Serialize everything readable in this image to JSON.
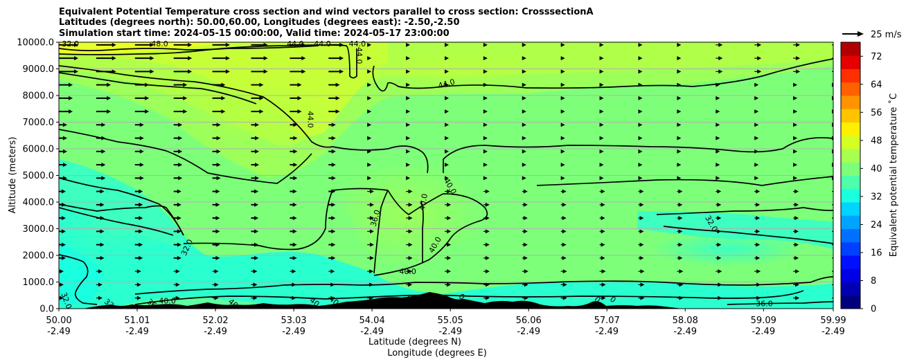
{
  "chart_data": {
    "type": "heatmap",
    "title_lines": [
      "Equivalent Potential Temperature cross section and wind vectors parallel to cross section: CrosssectionA",
      "Latitudes (degrees north): 50.00,60.00, Longitudes (degrees east): -2.50,-2.50",
      "Simulation start time: 2024-05-15 00:00:00, Valid time: 2024-05-17 23:00:00"
    ],
    "ylabel": "Altitude (meters)",
    "xlabel_lines": [
      "Latitude (degrees N)",
      "Longitude (degrees E)"
    ],
    "ylim": [
      0,
      10000
    ],
    "yticks": [
      {
        "value": 0,
        "label": "0.0"
      },
      {
        "value": 1000,
        "label": "1000.0"
      },
      {
        "value": 2000,
        "label": "2000.0"
      },
      {
        "value": 3000,
        "label": "3000.0"
      },
      {
        "value": 4000,
        "label": "4000.0"
      },
      {
        "value": 5000,
        "label": "5000.0"
      },
      {
        "value": 6000,
        "label": "6000.0"
      },
      {
        "value": 7000,
        "label": "7000.0"
      },
      {
        "value": 8000,
        "label": "8000.0"
      },
      {
        "value": 9000,
        "label": "9000.0"
      },
      {
        "value": 10000,
        "label": "10000.0"
      }
    ],
    "xlim": [
      50.0,
      59.99
    ],
    "xticks": [
      {
        "lat": 50.0,
        "lat_label": "50.00",
        "lon_label": "-2.49"
      },
      {
        "lat": 51.01,
        "lat_label": "51.01",
        "lon_label": "-2.49"
      },
      {
        "lat": 52.02,
        "lat_label": "52.02",
        "lon_label": "-2.49"
      },
      {
        "lat": 53.03,
        "lat_label": "53.03",
        "lon_label": "-2.49"
      },
      {
        "lat": 54.04,
        "lat_label": "54.04",
        "lon_label": "-2.49"
      },
      {
        "lat": 55.05,
        "lat_label": "55.05",
        "lon_label": "-2.49"
      },
      {
        "lat": 56.06,
        "lat_label": "56.06",
        "lon_label": "-2.49"
      },
      {
        "lat": 57.07,
        "lat_label": "57.07",
        "lon_label": "-2.49"
      },
      {
        "lat": 58.08,
        "lat_label": "58.08",
        "lon_label": "-2.49"
      },
      {
        "lat": 59.09,
        "lat_label": "59.09",
        "lon_label": "-2.49"
      },
      {
        "lat": 59.99,
        "lat_label": "59.99",
        "lon_label": "-2.49"
      }
    ],
    "grid": {
      "horizontal": true,
      "color": "#b0b0b0"
    },
    "colorbar": {
      "label": "Equivalent potential temperature ˚C",
      "min": 0,
      "max": 76,
      "ticks": [
        {
          "value": 0,
          "label": "0"
        },
        {
          "value": 8,
          "label": "8"
        },
        {
          "value": 16,
          "label": "16"
        },
        {
          "value": 24,
          "label": "24"
        },
        {
          "value": 32,
          "label": "32"
        },
        {
          "value": 40,
          "label": "40"
        },
        {
          "value": 48,
          "label": "48"
        },
        {
          "value": 56,
          "label": "56"
        },
        {
          "value": 64,
          "label": "64"
        },
        {
          "value": 72,
          "label": "72"
        }
      ],
      "colors": [
        "#00007f",
        "#0000b2",
        "#0000e5",
        "#0010ff",
        "#0040ff",
        "#0070ff",
        "#00a4ff",
        "#00d4ff",
        "#1affdf",
        "#4dffaa",
        "#7dff7a",
        "#a7ff50",
        "#d4ff22",
        "#ffef00",
        "#ffc400",
        "#ff9400",
        "#ff6000",
        "#ff3000",
        "#e50000",
        "#b20000"
      ]
    },
    "wind_key": {
      "label": "25 m/s",
      "speed": 25
    },
    "contour_labels": [
      {
        "text": "32.0",
        "lat": 50.15,
        "alt": 9950
      },
      {
        "text": "48.0",
        "lat": 51.3,
        "alt": 9950
      },
      {
        "text": "44.0",
        "lat": 53.05,
        "alt": 9950
      },
      {
        "text": "44.0",
        "lat": 53.4,
        "alt": 9950
      },
      {
        "text": "44.0",
        "lat": 53.85,
        "alt": 9950
      },
      {
        "text": "44.0",
        "lat": 53.88,
        "alt": 9500,
        "rotate": 90
      },
      {
        "text": "44.0",
        "lat": 55.0,
        "alt": 8450,
        "rotate": -15
      },
      {
        "text": "44.0",
        "lat": 53.25,
        "alt": 7100,
        "rotate": 90
      },
      {
        "text": "40.0",
        "lat": 55.05,
        "alt": 4600,
        "rotate": 60
      },
      {
        "text": "40.0",
        "lat": 54.7,
        "alt": 4000,
        "rotate": -80
      },
      {
        "text": "36.0",
        "lat": 54.08,
        "alt": 3400,
        "rotate": -75
      },
      {
        "text": "40.0",
        "lat": 54.85,
        "alt": 2400,
        "rotate": -60
      },
      {
        "text": "40.0",
        "lat": 54.5,
        "alt": 1400
      },
      {
        "text": "32.0",
        "lat": 58.42,
        "alt": 3200,
        "rotate": 60
      },
      {
        "text": "32.0",
        "lat": 51.65,
        "alt": 2300,
        "rotate": -65
      },
      {
        "text": "40.0",
        "lat": 51.4,
        "alt": 300
      },
      {
        "text": "36.0",
        "lat": 59.1,
        "alt": 200
      },
      {
        "text": "32.0",
        "lat": 50.1,
        "alt": 300,
        "rotate": 70
      },
      {
        "text": "32",
        "lat": 50.65,
        "alt": 200,
        "rotate": 40
      },
      {
        "text": "36",
        "lat": 51.2,
        "alt": 200,
        "rotate": 40
      },
      {
        "text": "40",
        "lat": 52.25,
        "alt": 200,
        "rotate": 40
      },
      {
        "text": "40",
        "lat": 53.3,
        "alt": 250,
        "rotate": 40
      },
      {
        "text": "40",
        "lat": 53.55,
        "alt": 300,
        "rotate": 40
      },
      {
        "text": "0",
        "lat": 55.2,
        "alt": 450,
        "rotate": 40
      },
      {
        "text": "0",
        "lat": 56.95,
        "alt": 350,
        "rotate": 40
      },
      {
        "text": "0",
        "lat": 57.15,
        "alt": 350,
        "rotate": 40
      }
    ]
  }
}
